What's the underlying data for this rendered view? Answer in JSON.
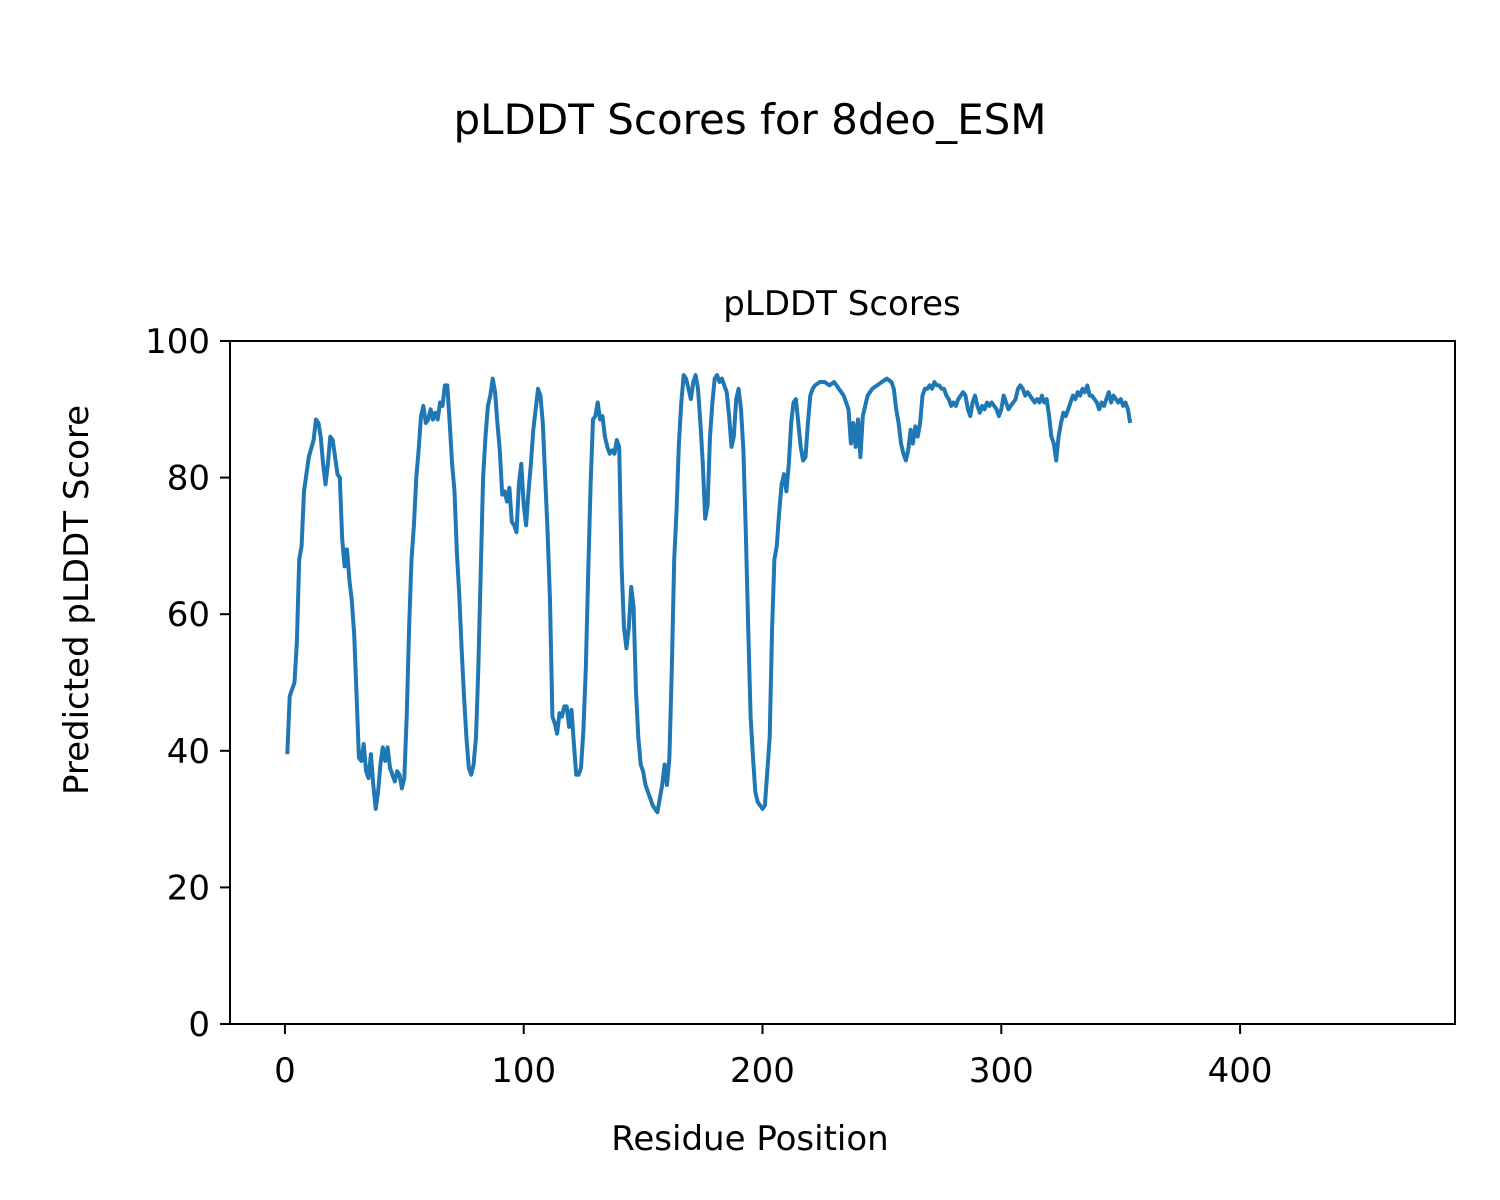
{
  "figure": {
    "suptitle": "pLDDT Scores for 8deo_ESM"
  },
  "chart_data": {
    "type": "line",
    "title": "pLDDT Scores",
    "xlabel": "Residue Position",
    "ylabel": "Predicted pLDDT Score",
    "xlim": [
      -23,
      490
    ],
    "ylim": [
      0,
      100
    ],
    "xticks": [
      0,
      100,
      200,
      300,
      400
    ],
    "yticks": [
      0,
      20,
      40,
      60,
      80,
      100
    ],
    "grid": false,
    "legend": "none",
    "series": [
      {
        "color": "#1f77b4",
        "points": [
          [
            1,
            39.5
          ],
          [
            2,
            48
          ],
          [
            4,
            50
          ],
          [
            5,
            56
          ],
          [
            6,
            68
          ],
          [
            7,
            70
          ],
          [
            8,
            78
          ],
          [
            10,
            83
          ],
          [
            12,
            85.5
          ],
          [
            13,
            88.5
          ],
          [
            14,
            88
          ],
          [
            15,
            86
          ],
          [
            16,
            82
          ],
          [
            17,
            79
          ],
          [
            18,
            82
          ],
          [
            19,
            86
          ],
          [
            20,
            85.5
          ],
          [
            21,
            83
          ],
          [
            22,
            80.5
          ],
          [
            23,
            80
          ],
          [
            24,
            71
          ],
          [
            25,
            67
          ],
          [
            26,
            69.5
          ],
          [
            27,
            65
          ],
          [
            28,
            62
          ],
          [
            29,
            57
          ],
          [
            30,
            48
          ],
          [
            31,
            39
          ],
          [
            32,
            38.5
          ],
          [
            33,
            41
          ],
          [
            34,
            37
          ],
          [
            35,
            36
          ],
          [
            36,
            39.5
          ],
          [
            37,
            35
          ],
          [
            38,
            31.5
          ],
          [
            39,
            34
          ],
          [
            40,
            38
          ],
          [
            41,
            40.5
          ],
          [
            42,
            38.5
          ],
          [
            43,
            40.5
          ],
          [
            44,
            37.5
          ],
          [
            45,
            36.5
          ],
          [
            46,
            35.5
          ],
          [
            47,
            37
          ],
          [
            48,
            36.5
          ],
          [
            49,
            34.5
          ],
          [
            50,
            36
          ],
          [
            51,
            45
          ],
          [
            52,
            58
          ],
          [
            53,
            68
          ],
          [
            54,
            73
          ],
          [
            55,
            80
          ],
          [
            56,
            84
          ],
          [
            57,
            89
          ],
          [
            58,
            90.5
          ],
          [
            59,
            88
          ],
          [
            60,
            88.5
          ],
          [
            61,
            90
          ],
          [
            62,
            88.5
          ],
          [
            63,
            89.5
          ],
          [
            64,
            88.5
          ],
          [
            65,
            91
          ],
          [
            66,
            90.5
          ],
          [
            67,
            93.5
          ],
          [
            68,
            93.5
          ],
          [
            69,
            88
          ],
          [
            70,
            82
          ],
          [
            71,
            78
          ],
          [
            72,
            69
          ],
          [
            73,
            63
          ],
          [
            74,
            55
          ],
          [
            75,
            48
          ],
          [
            76,
            42
          ],
          [
            77,
            37.5
          ],
          [
            78,
            36.5
          ],
          [
            79,
            38
          ],
          [
            80,
            42
          ],
          [
            81,
            52
          ],
          [
            82,
            66
          ],
          [
            83,
            80
          ],
          [
            84,
            86
          ],
          [
            85,
            90.5
          ],
          [
            86,
            92
          ],
          [
            87,
            94.5
          ],
          [
            88,
            92.5
          ],
          [
            89,
            88
          ],
          [
            90,
            84
          ],
          [
            91,
            77.5
          ],
          [
            92,
            78
          ],
          [
            93,
            76.5
          ],
          [
            94,
            78.5
          ],
          [
            95,
            73.5
          ],
          [
            96,
            73
          ],
          [
            97,
            72
          ],
          [
            98,
            79
          ],
          [
            99,
            82
          ],
          [
            100,
            76
          ],
          [
            101,
            73
          ],
          [
            102,
            78
          ],
          [
            103,
            82
          ],
          [
            104,
            87
          ],
          [
            105,
            90
          ],
          [
            106,
            93
          ],
          [
            107,
            92
          ],
          [
            108,
            88
          ],
          [
            109,
            80
          ],
          [
            110,
            72
          ],
          [
            111,
            62
          ],
          [
            112,
            45
          ],
          [
            113,
            44
          ],
          [
            114,
            42.5
          ],
          [
            115,
            45.5
          ],
          [
            116,
            45
          ],
          [
            117,
            46.5
          ],
          [
            118,
            46.5
          ],
          [
            119,
            43.5
          ],
          [
            120,
            46
          ],
          [
            121,
            41
          ],
          [
            122,
            36.5
          ],
          [
            123,
            36.5
          ],
          [
            124,
            37.5
          ],
          [
            125,
            43
          ],
          [
            126,
            52
          ],
          [
            127,
            66
          ],
          [
            128,
            79
          ],
          [
            129,
            88.5
          ],
          [
            130,
            89
          ],
          [
            131,
            91
          ],
          [
            132,
            88.5
          ],
          [
            133,
            89
          ],
          [
            134,
            86
          ],
          [
            135,
            84.5
          ],
          [
            136,
            83.5
          ],
          [
            137,
            84
          ],
          [
            138,
            83.5
          ],
          [
            139,
            85.5
          ],
          [
            140,
            84.5
          ],
          [
            141,
            67
          ],
          [
            142,
            58
          ],
          [
            143,
            55
          ],
          [
            144,
            58
          ],
          [
            145,
            64
          ],
          [
            146,
            61
          ],
          [
            147,
            49
          ],
          [
            148,
            42
          ],
          [
            149,
            38
          ],
          [
            150,
            37
          ],
          [
            151,
            35
          ],
          [
            152,
            34
          ],
          [
            153,
            33
          ],
          [
            154,
            32
          ],
          [
            155,
            31.5
          ],
          [
            156,
            31
          ],
          [
            157,
            33
          ],
          [
            158,
            35
          ],
          [
            159,
            38
          ],
          [
            160,
            35
          ],
          [
            161,
            39
          ],
          [
            162,
            52
          ],
          [
            163,
            68
          ],
          [
            164,
            75
          ],
          [
            165,
            85
          ],
          [
            166,
            91
          ],
          [
            167,
            95
          ],
          [
            168,
            94.5
          ],
          [
            169,
            93
          ],
          [
            170,
            91.5
          ],
          [
            171,
            94
          ],
          [
            172,
            95
          ],
          [
            173,
            93
          ],
          [
            174,
            88
          ],
          [
            175,
            82
          ],
          [
            176,
            74
          ],
          [
            177,
            76
          ],
          [
            178,
            86
          ],
          [
            179,
            91
          ],
          [
            180,
            94.5
          ],
          [
            181,
            95
          ],
          [
            182,
            94
          ],
          [
            183,
            94.5
          ],
          [
            184,
            93.5
          ],
          [
            185,
            92.5
          ],
          [
            186,
            89
          ],
          [
            187,
            84.5
          ],
          [
            188,
            86
          ],
          [
            189,
            91.5
          ],
          [
            190,
            93
          ],
          [
            191,
            90
          ],
          [
            192,
            84
          ],
          [
            193,
            72
          ],
          [
            194,
            58
          ],
          [
            195,
            45
          ],
          [
            196,
            39
          ],
          [
            197,
            34
          ],
          [
            198,
            32.5
          ],
          [
            199,
            32
          ],
          [
            200,
            31.5
          ],
          [
            201,
            32
          ],
          [
            202,
            37
          ],
          [
            203,
            42
          ],
          [
            204,
            58
          ],
          [
            205,
            68
          ],
          [
            206,
            70
          ],
          [
            207,
            75
          ],
          [
            208,
            79
          ],
          [
            209,
            80.5
          ],
          [
            210,
            78
          ],
          [
            211,
            82
          ],
          [
            212,
            88
          ],
          [
            213,
            91
          ],
          [
            214,
            91.5
          ],
          [
            215,
            88
          ],
          [
            216,
            84.5
          ],
          [
            217,
            82.5
          ],
          [
            218,
            83
          ],
          [
            219,
            88
          ],
          [
            220,
            92
          ],
          [
            221,
            93
          ],
          [
            222,
            93.5
          ],
          [
            224,
            94
          ],
          [
            226,
            94
          ],
          [
            228,
            93.5
          ],
          [
            230,
            94
          ],
          [
            232,
            93
          ],
          [
            234,
            92
          ],
          [
            236,
            90
          ],
          [
            237,
            85
          ],
          [
            238,
            88
          ],
          [
            239,
            84.5
          ],
          [
            240,
            88.5
          ],
          [
            241,
            83
          ],
          [
            242,
            89
          ],
          [
            244,
            92
          ],
          [
            246,
            93
          ],
          [
            248,
            93.5
          ],
          [
            250,
            94
          ],
          [
            252,
            94.5
          ],
          [
            254,
            94
          ],
          [
            255,
            93
          ],
          [
            256,
            90
          ],
          [
            257,
            88
          ],
          [
            258,
            85
          ],
          [
            259,
            83.5
          ],
          [
            260,
            82.5
          ],
          [
            261,
            84
          ],
          [
            262,
            87
          ],
          [
            263,
            85
          ],
          [
            264,
            87.5
          ],
          [
            265,
            86
          ],
          [
            266,
            88
          ],
          [
            267,
            92
          ],
          [
            268,
            93
          ],
          [
            269,
            93
          ],
          [
            270,
            93.5
          ],
          [
            271,
            93
          ],
          [
            272,
            94
          ],
          [
            273,
            93.5
          ],
          [
            274,
            93.5
          ],
          [
            275,
            93
          ],
          [
            276,
            93
          ],
          [
            277,
            92
          ],
          [
            278,
            91.5
          ],
          [
            279,
            90.5
          ],
          [
            280,
            91
          ],
          [
            281,
            90.5
          ],
          [
            282,
            91.5
          ],
          [
            283,
            92
          ],
          [
            284,
            92.5
          ],
          [
            285,
            92
          ],
          [
            286,
            90
          ],
          [
            287,
            89
          ],
          [
            288,
            91
          ],
          [
            289,
            92
          ],
          [
            290,
            90.5
          ],
          [
            291,
            89.5
          ],
          [
            292,
            90.5
          ],
          [
            293,
            90
          ],
          [
            294,
            91
          ],
          [
            295,
            90.5
          ],
          [
            296,
            91
          ],
          [
            297,
            90.5
          ],
          [
            298,
            90
          ],
          [
            299,
            89
          ],
          [
            300,
            90
          ],
          [
            301,
            92
          ],
          [
            302,
            91
          ],
          [
            303,
            90
          ],
          [
            304,
            90.5
          ],
          [
            305,
            91
          ],
          [
            306,
            91.5
          ],
          [
            307,
            93
          ],
          [
            308,
            93.5
          ],
          [
            309,
            93
          ],
          [
            310,
            92
          ],
          [
            311,
            92.5
          ],
          [
            312,
            92
          ],
          [
            313,
            91.5
          ],
          [
            314,
            91
          ],
          [
            315,
            91.5
          ],
          [
            316,
            91
          ],
          [
            317,
            92
          ],
          [
            318,
            91
          ],
          [
            319,
            91.5
          ],
          [
            320,
            89
          ],
          [
            321,
            86
          ],
          [
            322,
            85
          ],
          [
            323,
            82.5
          ],
          [
            324,
            86
          ],
          [
            325,
            88
          ],
          [
            326,
            89.5
          ],
          [
            327,
            89
          ],
          [
            328,
            90
          ],
          [
            329,
            91
          ],
          [
            330,
            92
          ],
          [
            331,
            91.5
          ],
          [
            332,
            92.5
          ],
          [
            333,
            92
          ],
          [
            334,
            93
          ],
          [
            335,
            92.5
          ],
          [
            336,
            93.5
          ],
          [
            337,
            92
          ],
          [
            338,
            92
          ],
          [
            339,
            91.5
          ],
          [
            340,
            91
          ],
          [
            341,
            90
          ],
          [
            342,
            91
          ],
          [
            343,
            90.5
          ],
          [
            344,
            91.5
          ],
          [
            345,
            92.5
          ],
          [
            346,
            91
          ],
          [
            347,
            92
          ],
          [
            348,
            91.5
          ],
          [
            349,
            91
          ],
          [
            350,
            91.5
          ],
          [
            351,
            90.5
          ],
          [
            352,
            91
          ],
          [
            353,
            90
          ],
          [
            354,
            88
          ]
        ]
      }
    ]
  }
}
